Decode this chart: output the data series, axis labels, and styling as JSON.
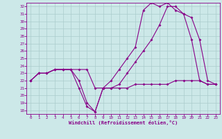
{
  "xlabel": "Windchill (Refroidissement éolien,°C)",
  "xlim": [
    -0.5,
    23.5
  ],
  "ylim": [
    17.5,
    32.5
  ],
  "yticks": [
    18,
    19,
    20,
    21,
    22,
    23,
    24,
    25,
    26,
    27,
    28,
    29,
    30,
    31,
    32
  ],
  "xticks": [
    0,
    1,
    2,
    3,
    4,
    5,
    6,
    7,
    8,
    9,
    10,
    11,
    12,
    13,
    14,
    15,
    16,
    17,
    18,
    19,
    20,
    21,
    22,
    23
  ],
  "bg_color": "#cce8e8",
  "line_color": "#880088",
  "grid_color": "#aacccc",
  "line1_x": [
    0,
    1,
    2,
    3,
    4,
    5,
    6,
    7,
    8,
    9,
    10,
    11,
    12,
    13,
    14,
    15,
    16,
    17,
    18,
    19,
    20,
    21,
    22,
    23
  ],
  "line1_y": [
    22.0,
    23.0,
    23.0,
    23.5,
    23.5,
    23.5,
    22.0,
    19.0,
    17.8,
    21.0,
    21.0,
    21.0,
    21.0,
    21.5,
    21.5,
    21.5,
    21.5,
    21.5,
    22.0,
    22.0,
    22.0,
    22.0,
    21.5,
    21.5
  ],
  "line2_x": [
    0,
    1,
    2,
    3,
    4,
    5,
    6,
    7,
    8,
    9,
    10,
    11,
    12,
    13,
    14,
    15,
    16,
    17,
    18,
    19,
    20,
    21,
    22,
    23
  ],
  "line2_y": [
    22.0,
    23.0,
    23.0,
    23.5,
    23.5,
    23.5,
    21.0,
    18.5,
    17.8,
    21.0,
    21.0,
    21.5,
    23.0,
    24.5,
    26.0,
    27.5,
    29.5,
    32.0,
    32.0,
    31.0,
    30.5,
    27.5,
    22.0,
    21.5
  ],
  "line3_x": [
    0,
    1,
    2,
    3,
    4,
    5,
    6,
    7,
    8,
    9,
    10,
    11,
    12,
    13,
    14,
    15,
    16,
    17,
    18,
    19,
    20,
    21,
    22,
    23
  ],
  "line3_y": [
    22.0,
    23.0,
    23.0,
    23.5,
    23.5,
    23.5,
    23.5,
    23.5,
    21.0,
    21.0,
    22.0,
    23.5,
    25.0,
    26.5,
    31.5,
    32.5,
    32.0,
    32.5,
    31.5,
    31.0,
    27.5,
    22.0,
    21.5,
    21.5
  ]
}
